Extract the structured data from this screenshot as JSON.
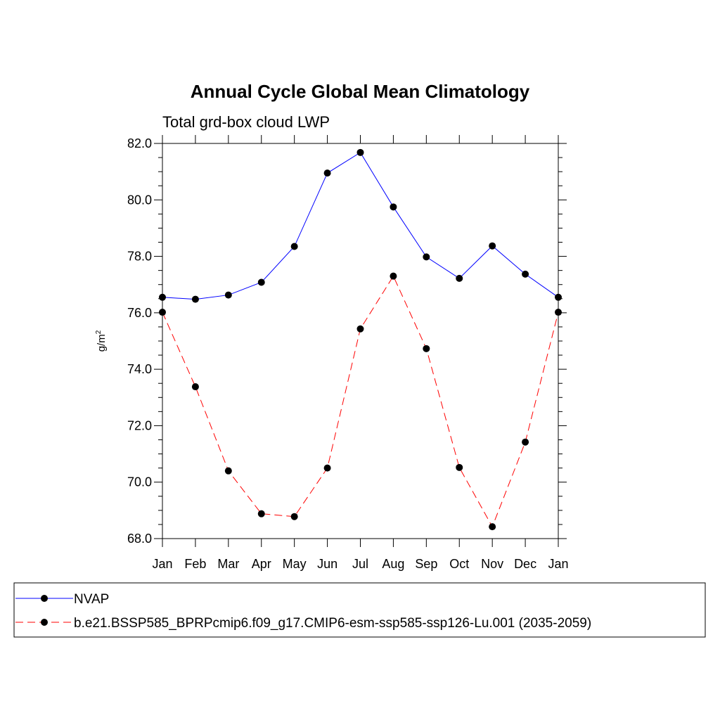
{
  "chart_data": {
    "type": "line",
    "title": "Annual Cycle Global Mean Climatology",
    "subtitle": "Total grd-box cloud LWP",
    "ylabel": "g/m",
    "ylabel_sup": "2",
    "xlabel": "",
    "categories": [
      "Jan",
      "Feb",
      "Mar",
      "Apr",
      "May",
      "Jun",
      "Jul",
      "Aug",
      "Sep",
      "Oct",
      "Nov",
      "Dec",
      "Jan"
    ],
    "ylim": [
      68.0,
      82.0
    ],
    "yticks": [
      "68.0",
      "70.0",
      "72.0",
      "74.0",
      "76.0",
      "78.0",
      "80.0",
      "82.0"
    ],
    "series": [
      {
        "name": "NVAP",
        "color": "#0000ff",
        "dash": "solid",
        "values": [
          76.55,
          76.48,
          76.63,
          77.08,
          78.35,
          80.95,
          81.68,
          79.75,
          77.98,
          77.22,
          78.37,
          77.37,
          76.55
        ]
      },
      {
        "name": "b.e21.BSSP585_BPRPcmip6.f09_g17.CMIP6-esm-ssp585-ssp126-Lu.001 (2035-2059)",
        "color": "#ff0000",
        "dash": "dashed",
        "values": [
          76.02,
          73.38,
          70.4,
          68.88,
          68.78,
          70.5,
          75.43,
          77.3,
          74.73,
          70.52,
          68.42,
          71.42,
          76.02
        ]
      }
    ],
    "legend_position": "bottom"
  }
}
